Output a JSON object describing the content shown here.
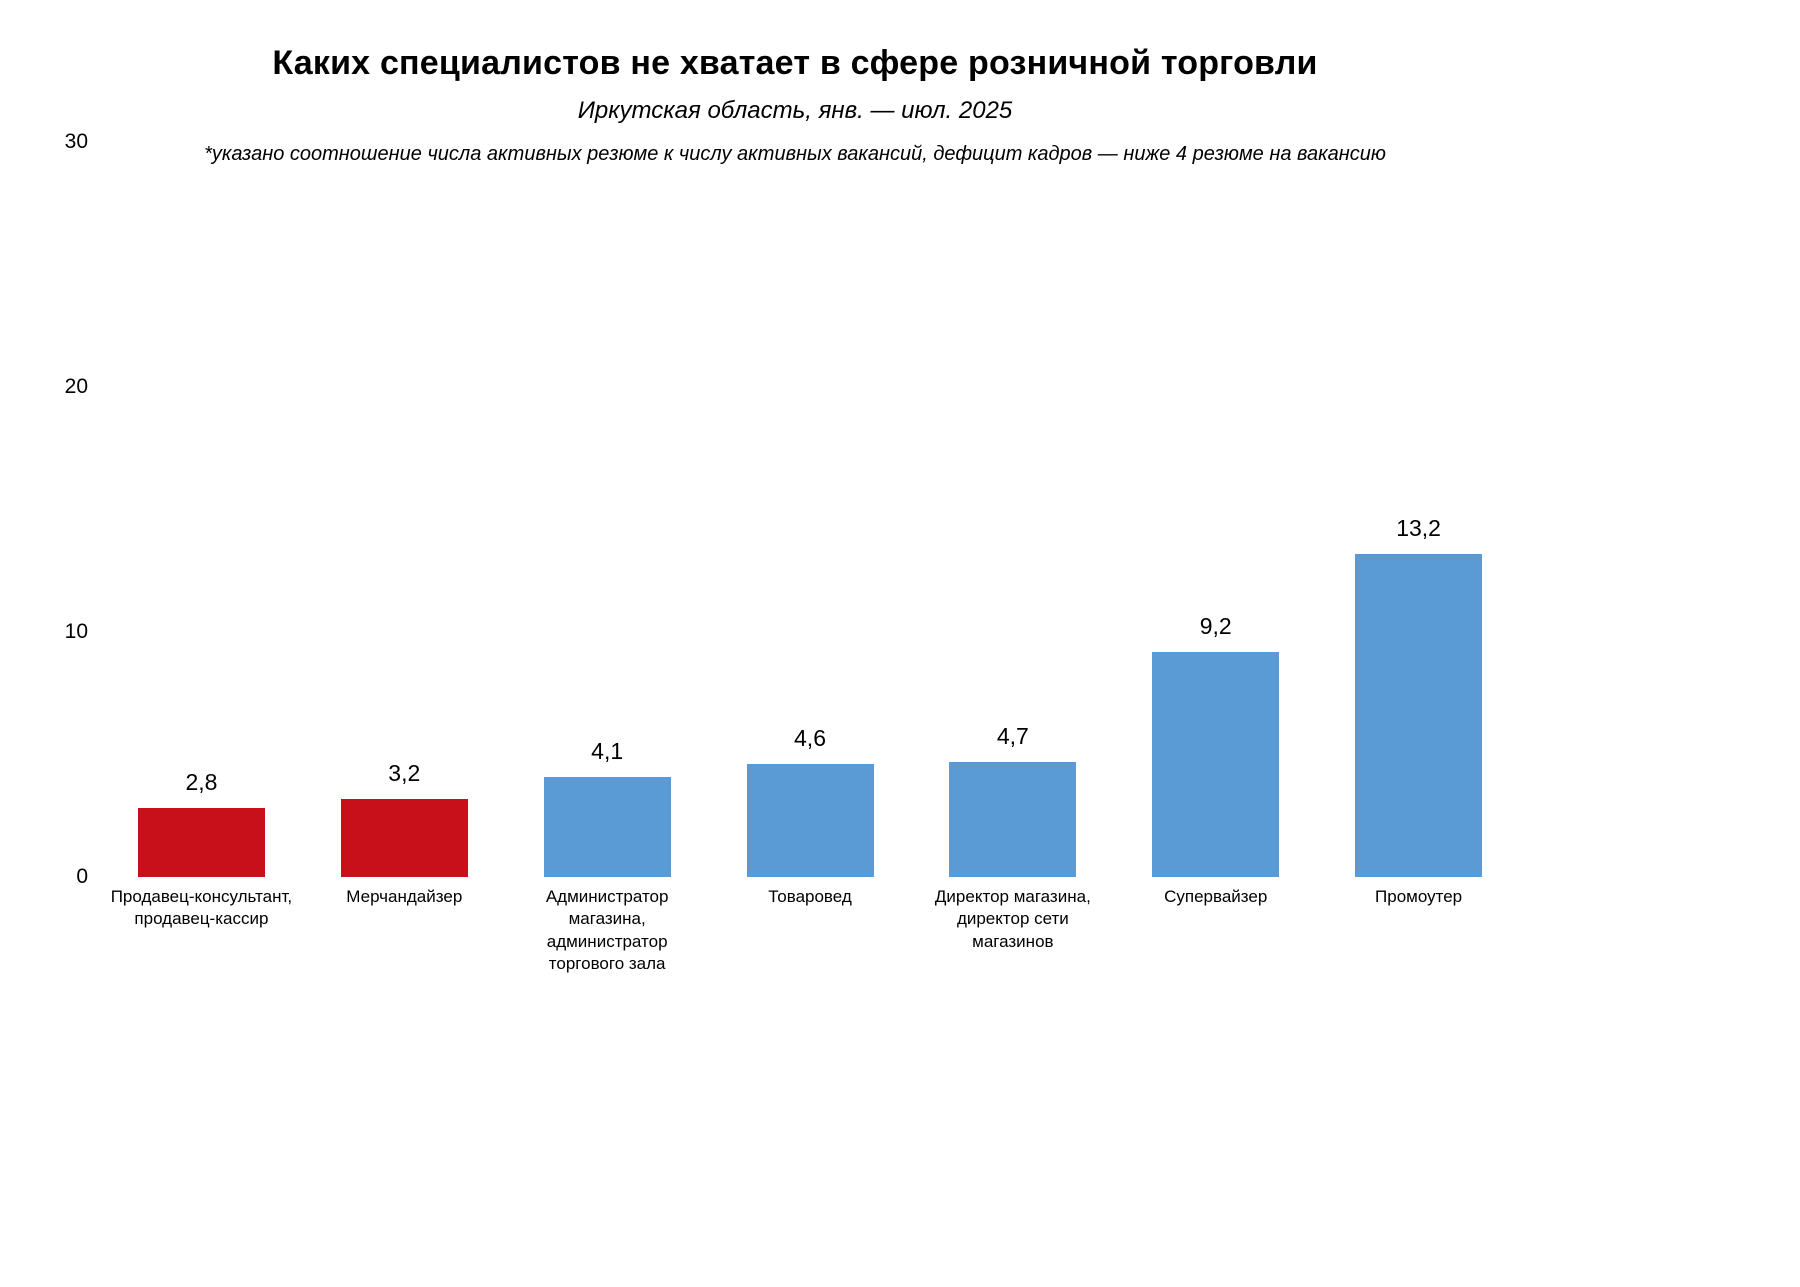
{
  "header": {
    "title": "Каких специалистов не хватает в сфере розничной торговли",
    "subtitle": "Иркутская область, янв. — июл. 2025",
    "note": "*указано соотношение числа активных резюме к числу активных вакансий, дефицит кадров — ниже 4 резюме на вакансию"
  },
  "colors": {
    "deficit_bar": "#c8101a",
    "normal_bar": "#5b9bd5",
    "text": "#000000",
    "background": "#ffffff"
  },
  "chart_data": {
    "type": "bar",
    "title": "Каких специалистов не хватает в сфере розничной торговли",
    "subtitle": "Иркутская область, янв. — июл. 2025",
    "footnote": "*указано соотношение числа активных резюме к числу активных вакансий, дефицит кадров — ниже 4 резюме на вакансию",
    "categories": [
      "Продавец-консультант, продавец-кассир",
      "Мерчандайзер",
      "Администратор магазина, администратор торгового зала",
      "Товаровед",
      "Директор магазина, директор сети магазинов",
      "Супервайзер",
      "Промоутер"
    ],
    "values": [
      2.8,
      3.2,
      4.1,
      4.6,
      4.7,
      9.2,
      13.2
    ],
    "value_labels": [
      "2,8",
      "3,2",
      "4,1",
      "4,6",
      "4,7",
      "9,2",
      "13,2"
    ],
    "bar_colors": [
      "#c8101a",
      "#c8101a",
      "#5b9bd5",
      "#5b9bd5",
      "#5b9bd5",
      "#5b9bd5",
      "#5b9bd5"
    ],
    "xlabel": "",
    "ylabel": "",
    "ylim": [
      0,
      30
    ],
    "yticks": [
      0,
      10,
      20,
      30
    ],
    "grid": false,
    "legend_position": "none"
  }
}
